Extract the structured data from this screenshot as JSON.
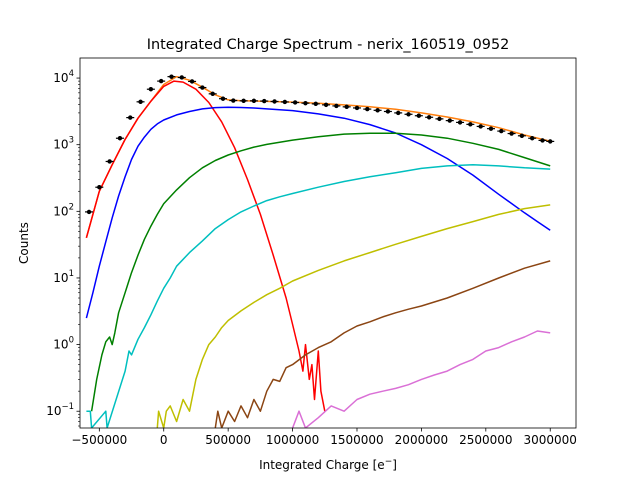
{
  "chart_data": {
    "type": "line",
    "title": "Integrated Charge Spectrum - nerix_160519_0952",
    "xlabel": "Integrated Charge [e",
    "xlabel_superscript": "−",
    "xlabel_close": "]",
    "ylabel": "Counts",
    "y_scale": "log",
    "xlim": [
      -650000,
      3200000
    ],
    "ylim": [
      0.056,
      20000
    ],
    "x_ticks": [
      {
        "value": -500000,
        "label": "−500000"
      },
      {
        "value": 0,
        "label": "0"
      },
      {
        "value": 500000,
        "label": "500000"
      },
      {
        "value": 1000000,
        "label": "1000000"
      },
      {
        "value": 1500000,
        "label": "1500000"
      },
      {
        "value": 2000000,
        "label": "2000000"
      },
      {
        "value": 2500000,
        "label": "2500000"
      },
      {
        "value": 3000000,
        "label": "3000000"
      }
    ],
    "y_ticks": [
      {
        "value": 0.1,
        "base": "10",
        "exp": "−1"
      },
      {
        "value": 1,
        "base": "10",
        "exp": "0"
      },
      {
        "value": 10,
        "base": "10",
        "exp": "1"
      },
      {
        "value": 100,
        "base": "10",
        "exp": "2"
      },
      {
        "value": 1000,
        "base": "10",
        "exp": "3"
      },
      {
        "value": 10000,
        "base": "10",
        "exp": "4"
      }
    ],
    "grid": false,
    "legend": "none",
    "data_points": {
      "color": "#000000",
      "x": [
        -580000,
        -500000,
        -420000,
        -340000,
        -260000,
        -180000,
        -100000,
        -20000,
        60000,
        140000,
        220000,
        300000,
        380000,
        460000,
        540000,
        620000,
        700000,
        780000,
        860000,
        940000,
        1020000,
        1100000,
        1180000,
        1260000,
        1340000,
        1420000,
        1500000,
        1580000,
        1660000,
        1740000,
        1820000,
        1900000,
        1980000,
        2060000,
        2140000,
        2220000,
        2300000,
        2380000,
        2460000,
        2540000,
        2620000,
        2700000,
        2780000,
        2860000,
        2940000,
        3000000
      ],
      "y": [
        98,
        230,
        560,
        1250,
        2550,
        4400,
        6800,
        9000,
        10500,
        10200,
        8900,
        7200,
        5800,
        4900,
        4600,
        4550,
        4550,
        4520,
        4450,
        4380,
        4300,
        4200,
        4100,
        3960,
        3820,
        3700,
        3560,
        3420,
        3280,
        3150,
        3000,
        2860,
        2720,
        2580,
        2440,
        2300,
        2160,
        2020,
        1880,
        1740,
        1600,
        1470,
        1360,
        1250,
        1160,
        1120
      ]
    },
    "series": [
      {
        "color": "#ff7f0e",
        "x": [
          -600000,
          -500000,
          -400000,
          -300000,
          -200000,
          -100000,
          0,
          100000,
          200000,
          300000,
          400000,
          500000,
          600000,
          700000,
          800000,
          900000,
          1000000,
          1200000,
          1400000,
          1600000,
          1800000,
          2000000,
          2200000,
          2400000,
          2600000,
          2800000,
          3000000
        ],
        "y": [
          40,
          200,
          500,
          1200,
          2500,
          4500,
          8000,
          10500,
          9300,
          7300,
          5600,
          4700,
          4550,
          4520,
          4470,
          4400,
          4350,
          4200,
          3950,
          3700,
          3400,
          3000,
          2600,
          2200,
          1800,
          1400,
          1130
        ]
      },
      {
        "color": "#ff0000",
        "x": [
          -600000,
          -500000,
          -400000,
          -300000,
          -200000,
          -100000,
          0,
          80000,
          150000,
          250000,
          350000,
          450000,
          550000,
          650000,
          750000,
          850000,
          950000,
          1000000,
          1050000,
          1080000,
          1100000,
          1130000,
          1150000,
          1170000,
          1200000,
          1220000,
          1250000
        ],
        "y": [
          40,
          200,
          500,
          1200,
          2500,
          4500,
          7500,
          9000,
          8700,
          6800,
          4300,
          2200,
          900,
          300,
          90,
          22,
          5,
          2,
          0.8,
          0.4,
          1,
          0.3,
          0.5,
          0.15,
          0.8,
          0.2,
          0.1
        ]
      },
      {
        "color": "#0000ff",
        "x": [
          -600000,
          -550000,
          -500000,
          -450000,
          -400000,
          -350000,
          -300000,
          -250000,
          -200000,
          -150000,
          -100000,
          -50000,
          0,
          100000,
          200000,
          300000,
          400000,
          500000,
          600000,
          700000,
          800000,
          900000,
          1000000,
          1200000,
          1400000,
          1600000,
          1800000,
          2000000,
          2200000,
          2400000,
          2600000,
          2800000,
          2900000,
          3000000
        ],
        "y": [
          2.5,
          6,
          15,
          35,
          80,
          170,
          330,
          600,
          950,
          1300,
          1700,
          2050,
          2350,
          2800,
          3150,
          3450,
          3600,
          3650,
          3620,
          3550,
          3450,
          3350,
          3250,
          2900,
          2500,
          2000,
          1500,
          1000,
          620,
          350,
          180,
          95,
          70,
          52
        ]
      },
      {
        "color": "#008000",
        "x": [
          -560000,
          -520000,
          -480000,
          -450000,
          -420000,
          -400000,
          -380000,
          -350000,
          -300000,
          -250000,
          -200000,
          -150000,
          -100000,
          -50000,
          0,
          100000,
          200000,
          300000,
          400000,
          500000,
          600000,
          700000,
          800000,
          900000,
          1000000,
          1200000,
          1400000,
          1600000,
          1800000,
          2000000,
          2200000,
          2400000,
          2600000,
          2800000,
          3000000
        ],
        "y": [
          0.1,
          0.3,
          0.7,
          1.1,
          1.3,
          1.0,
          1.5,
          3,
          6,
          12,
          22,
          38,
          60,
          90,
          130,
          210,
          320,
          450,
          580,
          700,
          810,
          920,
          1010,
          1090,
          1170,
          1320,
          1440,
          1490,
          1480,
          1400,
          1250,
          1050,
          850,
          640,
          480
        ]
      },
      {
        "color": "#00bfbf",
        "x": [
          -600000,
          -570000,
          -560000,
          -450000,
          -440000,
          -300000,
          -270000,
          -250000,
          -200000,
          -150000,
          -100000,
          -50000,
          0,
          50000,
          100000,
          200000,
          300000,
          400000,
          500000,
          600000,
          700000,
          800000,
          900000,
          1000000,
          1200000,
          1400000,
          1600000,
          1800000,
          2000000,
          2200000,
          2400000,
          2600000,
          2800000,
          3000000
        ],
        "y": [
          0.1,
          0.1,
          0.056,
          0.1,
          0.056,
          0.4,
          0.8,
          0.7,
          1.2,
          1.8,
          2.8,
          4.5,
          7,
          10,
          15,
          24,
          36,
          55,
          75,
          98,
          120,
          145,
          165,
          185,
          230,
          280,
          330,
          380,
          440,
          480,
          500,
          480,
          450,
          430
        ]
      },
      {
        "color": "#bfbf00",
        "x": [
          -50000,
          -40000,
          0,
          20000,
          50000,
          100000,
          150000,
          200000,
          250000,
          300000,
          350000,
          400000,
          450000,
          500000,
          600000,
          700000,
          800000,
          900000,
          1000000,
          1200000,
          1400000,
          1600000,
          1800000,
          2000000,
          2200000,
          2400000,
          2600000,
          2800000,
          3000000
        ],
        "y": [
          0.056,
          0.1,
          0.056,
          0.1,
          0.12,
          0.07,
          0.15,
          0.1,
          0.3,
          0.6,
          1.0,
          1.3,
          1.8,
          2.3,
          3.2,
          4.3,
          5.6,
          7,
          9,
          13,
          18,
          24,
          32,
          42,
          55,
          70,
          90,
          110,
          125
        ]
      },
      {
        "color": "#8b4513",
        "x": [
          400000,
          420000,
          450000,
          500000,
          550000,
          600000,
          650000,
          700000,
          750000,
          800000,
          850000,
          900000,
          950000,
          1000000,
          1100000,
          1200000,
          1300000,
          1400000,
          1500000,
          1600000,
          1700000,
          1800000,
          1900000,
          2000000,
          2200000,
          2400000,
          2600000,
          2800000,
          3000000
        ],
        "y": [
          0.056,
          0.1,
          0.056,
          0.1,
          0.07,
          0.12,
          0.08,
          0.15,
          0.1,
          0.2,
          0.3,
          0.28,
          0.45,
          0.5,
          0.7,
          0.9,
          1.1,
          1.5,
          1.9,
          2.2,
          2.6,
          3.0,
          3.4,
          3.8,
          5,
          7,
          10,
          14,
          18
        ]
      },
      {
        "color": "#da70d6",
        "x": [
          1000000,
          1050000,
          1100000,
          1200000,
          1300000,
          1400000,
          1500000,
          1600000,
          1700000,
          1800000,
          1900000,
          2000000,
          2100000,
          2200000,
          2300000,
          2400000,
          2500000,
          2600000,
          2700000,
          2800000,
          2900000,
          3000000
        ],
        "y": [
          0.056,
          0.1,
          0.056,
          0.08,
          0.12,
          0.1,
          0.15,
          0.18,
          0.2,
          0.22,
          0.25,
          0.3,
          0.35,
          0.4,
          0.5,
          0.6,
          0.8,
          0.9,
          1.1,
          1.3,
          1.6,
          1.5
        ]
      }
    ]
  }
}
